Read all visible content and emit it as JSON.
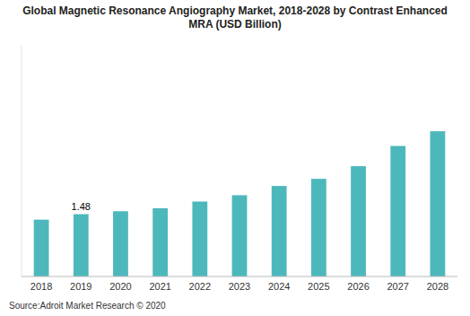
{
  "chart_data": {
    "type": "bar",
    "title": "Global Magnetic Resonance Angiography Market, 2018-2028 by Contrast Enhanced\nMRA (USD Billion)",
    "categories": [
      "2018",
      "2019",
      "2020",
      "2021",
      "2022",
      "2023",
      "2024",
      "2025",
      "2026",
      "2027",
      "2028"
    ],
    "values": [
      1.35,
      1.48,
      1.55,
      1.62,
      1.78,
      1.93,
      2.15,
      2.32,
      2.62,
      3.1,
      3.45
    ],
    "color": "#4db8bc",
    "ylim": [
      0,
      5.5
    ],
    "tick_labels": "x",
    "grid": false,
    "annotations": [
      {
        "text": "1.48",
        "x": "2019"
      }
    ],
    "source": "Source:Adroit Market Research © 2020"
  }
}
